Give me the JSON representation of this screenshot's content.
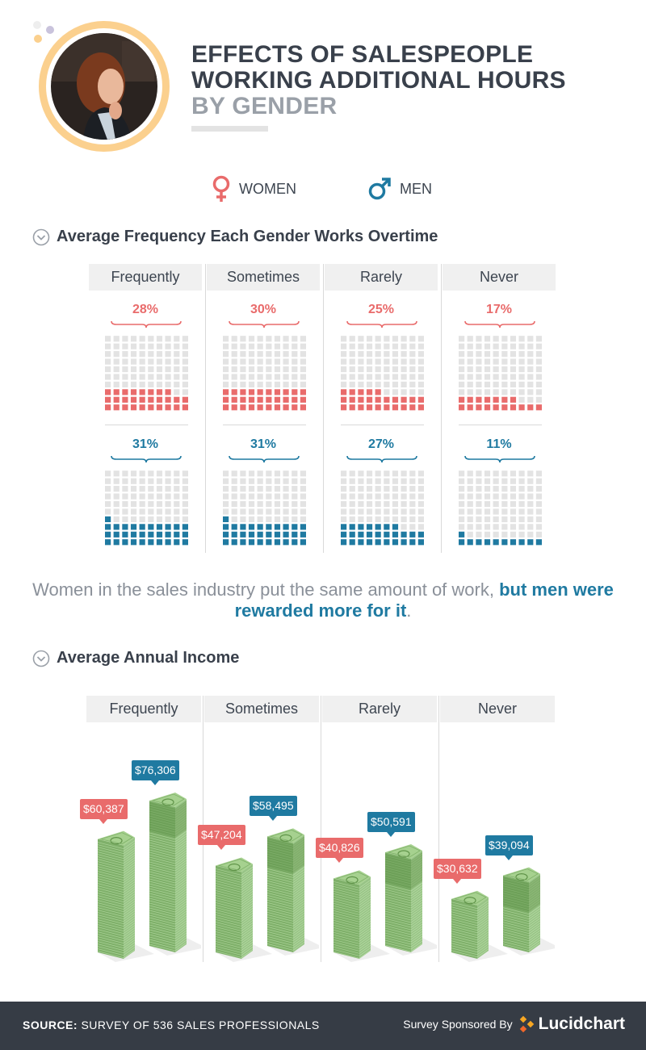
{
  "header": {
    "title_line1": "EFFECTS OF SALESPEOPLE",
    "title_line2": "WORKING ADDITIONAL HOURS",
    "title_line3": "BY GENDER"
  },
  "legend": {
    "women": "WOMEN",
    "men": "MEN",
    "women_color": "#e96b6b",
    "men_color": "#1f7aa1"
  },
  "sections": {
    "frequency_title": "Average Frequency Each Gender Works Overtime",
    "income_title": "Average Annual Income"
  },
  "message": {
    "part1": "Women in the sales industry put the same amount of work, ",
    "highlight": "but men were rewarded more for it",
    "end": "."
  },
  "footer": {
    "source_label": "SOURCE:",
    "source_text": " SURVEY OF 536 SALES PROFESSIONALS",
    "sponsor_text": "Survey Sponsored By",
    "brand_light": "Lucid",
    "brand_bold": "chart"
  },
  "chart_data": [
    {
      "type": "waffle",
      "title": "Average Frequency Each Gender Works Overtime",
      "categories": [
        "Frequently",
        "Sometimes",
        "Rarely",
        "Never"
      ],
      "series": [
        {
          "name": "WOMEN",
          "values": [
            28,
            30,
            25,
            17
          ],
          "labels": [
            "28%",
            "30%",
            "25%",
            "17%"
          ],
          "color": "#e96b6b"
        },
        {
          "name": "MEN",
          "values": [
            31,
            31,
            27,
            11
          ],
          "labels": [
            "31%",
            "31%",
            "27%",
            "11%"
          ],
          "color": "#1f7aa1"
        }
      ],
      "unit": "%"
    },
    {
      "type": "bar",
      "title": "Average Annual Income",
      "categories": [
        "Frequently",
        "Sometimes",
        "Rarely",
        "Never"
      ],
      "series": [
        {
          "name": "WOMEN",
          "values": [
            60387,
            47204,
            40826,
            30632
          ],
          "labels": [
            "$60,387",
            "$47,204",
            "$40,826",
            "$30,632"
          ],
          "color": "#e96b6b"
        },
        {
          "name": "MEN",
          "values": [
            76306,
            58495,
            50591,
            39094
          ],
          "labels": [
            "$76,306",
            "$58,495",
            "$50,591",
            "$39,094"
          ],
          "color": "#1f7aa1"
        }
      ]
    }
  ]
}
